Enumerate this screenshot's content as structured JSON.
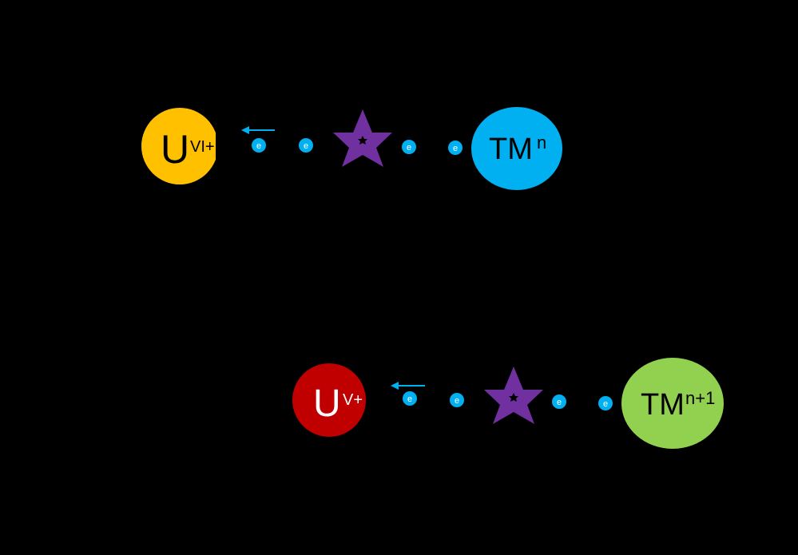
{
  "colors": {
    "background": "#000000",
    "uranium_vi": "#FFC000",
    "uranium_v": "#C00000",
    "tm_n": "#00B0F0",
    "tm_n1": "#92D050",
    "star": "#7030A0",
    "electron": "#00B0F0",
    "arrow": "#00B0F0",
    "label_text": "#000000",
    "uv_text": "#FFFFFF"
  },
  "top_row": {
    "uranium": {
      "symbol": "U",
      "superscript": "VI+"
    },
    "tm": {
      "symbol": "TM",
      "superscript": "n"
    },
    "electrons": [
      "e",
      "e",
      "e",
      "e"
    ],
    "star_icon": "star-icon"
  },
  "bottom_row": {
    "uranium": {
      "symbol": "U",
      "superscript": "V+"
    },
    "tm": {
      "symbol": "TM",
      "superscript": "n+1"
    },
    "electrons": [
      "e",
      "e",
      "e",
      "e"
    ],
    "star_icon": "star-icon"
  }
}
